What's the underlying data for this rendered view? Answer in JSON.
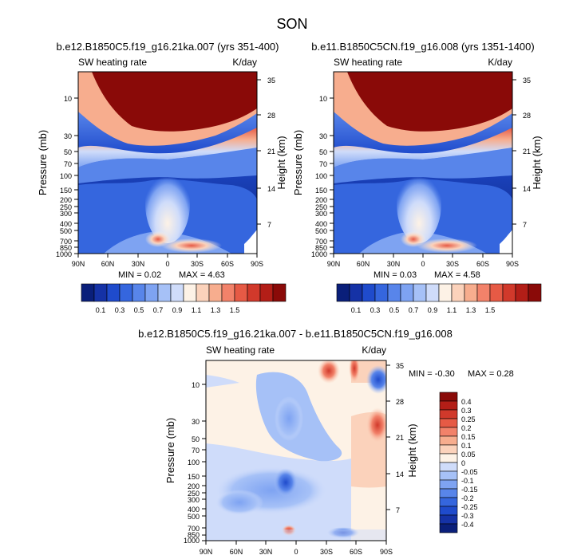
{
  "figure": {
    "title": "SON"
  },
  "colors": {
    "abs_palette": [
      "#0a1f7a",
      "#1532a6",
      "#1f4bcc",
      "#3566de",
      "#5885ea",
      "#7ea3f2",
      "#a6c1f7",
      "#cfdcfa",
      "#fdf2e6",
      "#fbd2bb",
      "#f7ad8e",
      "#f2826a",
      "#e65a45",
      "#d1392b",
      "#b31e17",
      "#8a0a08"
    ],
    "diff_palette": [
      "#0a1f7a",
      "#1532a6",
      "#1f4bcc",
      "#3566de",
      "#5885ea",
      "#7ea3f2",
      "#a6c1f7",
      "#cfdcfa",
      "#fdf2e6",
      "#fbd2bb",
      "#f7ad8e",
      "#f2826a",
      "#e65a45",
      "#d1392b",
      "#b31e17",
      "#8a0a08"
    ]
  },
  "chart_data": [
    {
      "type": "heatmap",
      "title": "b.e12.B1850C5.f19_g16.21ka.007 (yrs 351-400)",
      "left_label": "SW heating rate",
      "right_label": "K/day",
      "xlabel": "",
      "ylabel": "Pressure (mb)",
      "y2label": "Height (km)",
      "x_ticks": [
        "90N",
        "60N",
        "30N",
        "0",
        "30S",
        "60S",
        "90S"
      ],
      "y_ticks": [
        "10",
        "30",
        "50",
        "70",
        "100",
        "150",
        "200",
        "250",
        "300",
        "400",
        "500",
        "700",
        "850",
        "1000"
      ],
      "y2_ticks": [
        "35",
        "28",
        "21",
        "14",
        "7"
      ],
      "min_text": "MIN =  0.02",
      "max_text": "MAX =  4.63",
      "colorbar": [
        "0.1",
        "0.3",
        "0.5",
        "0.7",
        "0.9",
        "1.1",
        "1.3",
        "1.5"
      ]
    },
    {
      "type": "heatmap",
      "title": "b.e11.B1850C5CN.f19_g16.008 (yrs 1351-1400)",
      "left_label": "SW heating rate",
      "right_label": "K/day",
      "xlabel": "",
      "ylabel": "Pressure (mb)",
      "y2label": "Height (km)",
      "x_ticks": [
        "90N",
        "60N",
        "30N",
        "0",
        "30S",
        "60S",
        "90S"
      ],
      "y_ticks": [
        "10",
        "30",
        "50",
        "70",
        "100",
        "150",
        "200",
        "250",
        "300",
        "400",
        "500",
        "700",
        "850",
        "1000"
      ],
      "y2_ticks": [
        "35",
        "28",
        "21",
        "14",
        "7"
      ],
      "min_text": "MIN =  0.03",
      "max_text": "MAX =  4.58",
      "colorbar": [
        "0.1",
        "0.3",
        "0.5",
        "0.7",
        "0.9",
        "1.1",
        "1.3",
        "1.5"
      ]
    },
    {
      "type": "heatmap",
      "title": "b.e12.B1850C5.f19_g16.21ka.007 - b.e11.B1850C5CN.f19_g16.008",
      "left_label": "SW heating rate",
      "right_label": "K/day",
      "xlabel": "",
      "ylabel": "Pressure (mb)",
      "y2label": "Height (km)",
      "x_ticks": [
        "90N",
        "60N",
        "30N",
        "0",
        "30S",
        "60S",
        "90S"
      ],
      "y_ticks": [
        "10",
        "30",
        "50",
        "70",
        "100",
        "150",
        "200",
        "250",
        "300",
        "400",
        "500",
        "700",
        "850",
        "1000"
      ],
      "y2_ticks": [
        "35",
        "28",
        "21",
        "14",
        "7"
      ],
      "min_text": "MIN =  -0.30",
      "max_text": "MAX =   0.28",
      "colorbar": [
        "0.4",
        "0.3",
        "0.25",
        "0.2",
        "0.15",
        "0.1",
        "0.05",
        "0",
        "-0.05",
        "-0.1",
        "-0.15",
        "-0.2",
        "-0.25",
        "-0.3",
        "-0.4"
      ]
    }
  ]
}
